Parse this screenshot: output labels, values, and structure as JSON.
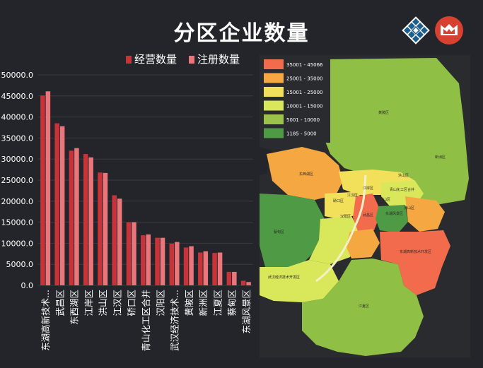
{
  "header": {
    "title": "分区企业数量"
  },
  "colors": {
    "bar_dark": "#c8333a",
    "bar_light": "#e8767a",
    "background": "#24252b"
  },
  "chart_data": {
    "type": "bar",
    "categories": [
      "东湖高新技术...",
      "武昌区",
      "东西湖区",
      "江岸区",
      "洪山区",
      "江汉区",
      "硚口区",
      "青山化工区合并",
      "汉阳区",
      "武汉经济技术...",
      "黄陂区",
      "新洲区",
      "江夏区",
      "蔡甸区",
      "东湖风景区"
    ],
    "series": [
      {
        "name": "经营数量",
        "values": [
          45100,
          38500,
          32000,
          31200,
          26800,
          21400,
          15000,
          11900,
          11300,
          9900,
          9000,
          7800,
          7700,
          3200,
          1100
        ]
      },
      {
        "name": "注册数量",
        "values": [
          46100,
          37800,
          32600,
          30400,
          26700,
          20600,
          15000,
          12100,
          11300,
          10300,
          9300,
          8100,
          7800,
          3200,
          800
        ]
      }
    ],
    "yticks": [
      "50000.0",
      "45000.0",
      "40000.0",
      "35000.0",
      "30000.0",
      "25000.0",
      "20000.0",
      "15000.0",
      "10000.0",
      "5000.0",
      "0.0"
    ],
    "ylim": [
      0,
      50000
    ]
  },
  "map": {
    "legend": [
      {
        "label": "35001 - 45066",
        "color": "#f26b4c"
      },
      {
        "label": "25001 - 35000",
        "color": "#f5a742"
      },
      {
        "label": "15001 - 25000",
        "color": "#f2e05a"
      },
      {
        "label": "10001 - 15000",
        "color": "#d9e85a"
      },
      {
        "label": "5001 - 10000",
        "color": "#9bc24a"
      },
      {
        "label": "1185 - 5000",
        "color": "#4f9a44"
      }
    ],
    "labels": {
      "huangpi": "黄陂区",
      "xinzhou": "新洲区",
      "dongxihu": "东西湖区",
      "hongshan_n": "洪山区",
      "jiangan": "江岸区",
      "qingshan": "青山化工区合并",
      "jianghan": "江汉区",
      "qiaokou": "硚口区",
      "hongshan_c": "洪山区",
      "caidian": "蔡甸区",
      "hanyang": "汉阳区",
      "wuchang": "武昌区",
      "donghu_scenic": "东湖风景区",
      "hongshan_s": "洪山区",
      "donghu_hitech": "东湖高新技术开发区",
      "econ": "武汉经济技术开发区",
      "jiangxia": "江夏区"
    }
  }
}
